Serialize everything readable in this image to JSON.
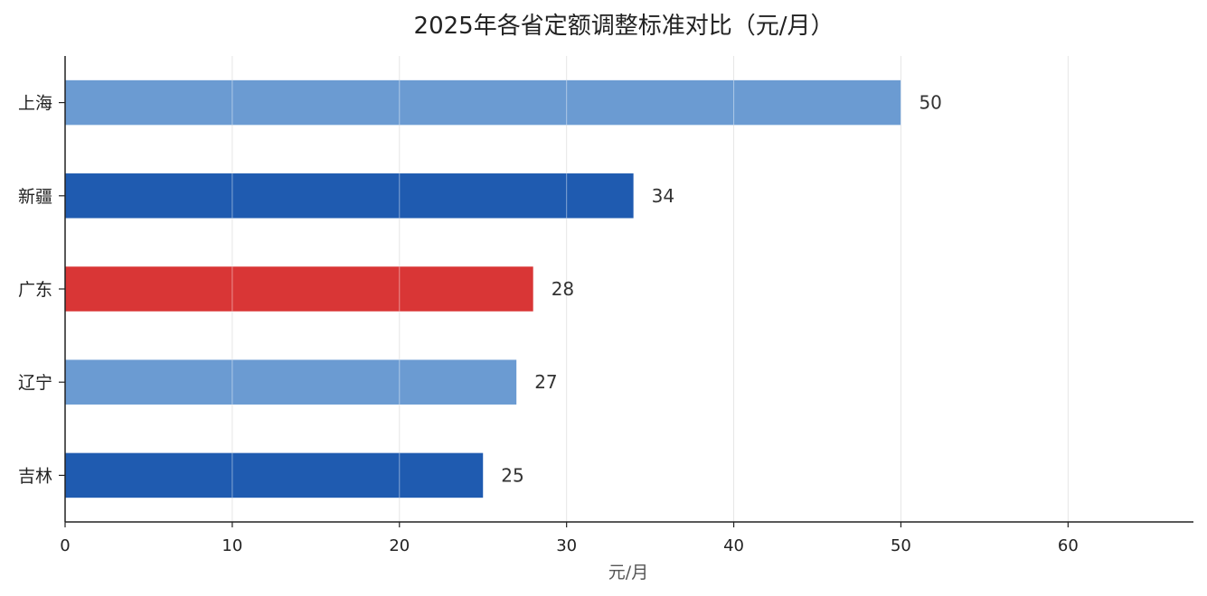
{
  "chart_data": {
    "type": "bar",
    "orientation": "horizontal",
    "title": "2025年各省定额调整标准对比（元/月）",
    "xlabel": "元/月",
    "ylabel": "",
    "categories": [
      "上海",
      "新疆",
      "广东",
      "辽宁",
      "吉林"
    ],
    "values": [
      50,
      34,
      28,
      27,
      25
    ],
    "bar_colors": [
      "#6b9bd2",
      "#1f5bb0",
      "#d93636",
      "#6b9bd2",
      "#1f5bb0"
    ],
    "x_ticks": [
      0,
      10,
      20,
      30,
      40,
      50,
      60
    ],
    "xlim": [
      0,
      67.5
    ],
    "grid": "vertical",
    "legend": "none",
    "value_labels": [
      "50",
      "34",
      "28",
      "27",
      "25"
    ]
  }
}
